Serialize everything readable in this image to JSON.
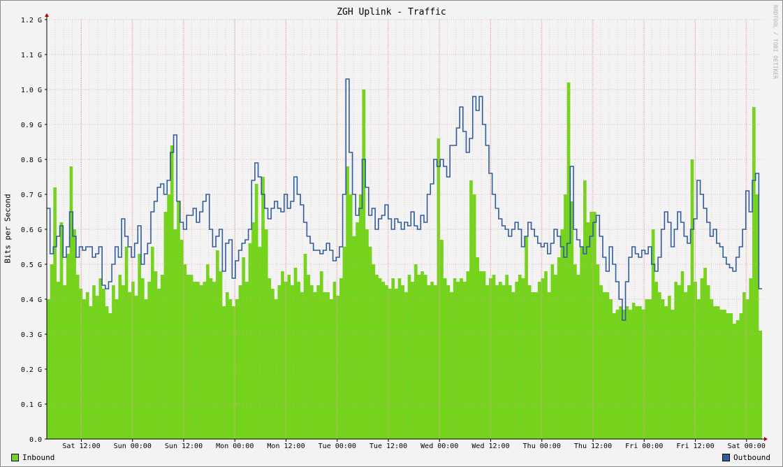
{
  "chart_data": {
    "type": "area",
    "title": "ZGH Uplink - Traffic",
    "ylabel": "Bits per Second",
    "watermark": "RRDTOOL / TOBI OETIKER",
    "ylim": [
      0,
      1.2
    ],
    "y_unit": "G",
    "y_ticks": [
      "0.0",
      "0.1 G",
      "0.2 G",
      "0.3 G",
      "0.4 G",
      "0.5 G",
      "0.6 G",
      "0.7 G",
      "0.8 G",
      "0.9 G",
      "1.0 G",
      "1.1 G",
      "1.2 G"
    ],
    "x_ticks": [
      "Sat 12:00",
      "Sun 00:00",
      "Sun 12:00",
      "Mon 00:00",
      "Mon 12:00",
      "Tue 00:00",
      "Tue 12:00",
      "Wed 00:00",
      "Wed 12:00",
      "Thu 00:00",
      "Thu 12:00",
      "Fri 00:00",
      "Fri 12:00",
      "Sat 00:00"
    ],
    "grid": true,
    "colors": {
      "inbound": "#74d41c",
      "outbound": "#2f5c9c",
      "grid": "#e8a0a0",
      "axis": "#000000",
      "arrow": "#b00000"
    },
    "series": [
      {
        "name": "Inbound",
        "style": "area",
        "values": [
          0.4,
          0.5,
          0.72,
          0.45,
          0.62,
          0.44,
          0.53,
          0.78,
          0.6,
          0.47,
          0.43,
          0.4,
          0.42,
          0.38,
          0.44,
          0.41,
          0.46,
          0.43,
          0.38,
          0.36,
          0.44,
          0.4,
          0.47,
          0.44,
          0.55,
          0.42,
          0.45,
          0.41,
          0.53,
          0.46,
          0.4,
          0.45,
          0.55,
          0.48,
          0.43,
          0.47,
          0.65,
          0.7,
          0.84,
          0.6,
          0.68,
          0.57,
          0.5,
          0.47,
          0.47,
          0.45,
          0.45,
          0.44,
          0.45,
          0.5,
          0.46,
          0.45,
          0.54,
          0.48,
          0.38,
          0.42,
          0.4,
          0.38,
          0.4,
          0.44,
          0.52,
          0.45,
          0.56,
          0.62,
          0.73,
          0.55,
          0.75,
          0.6,
          0.46,
          0.43,
          0.4,
          0.44,
          0.48,
          0.45,
          0.47,
          0.44,
          0.49,
          0.45,
          0.42,
          0.53,
          0.47,
          0.44,
          0.42,
          0.44,
          0.48,
          0.42,
          0.42,
          0.4,
          0.45,
          0.41,
          0.46,
          0.55,
          0.78,
          0.7,
          0.58,
          0.62,
          0.7,
          1.0,
          0.6,
          0.55,
          0.5,
          0.47,
          0.46,
          0.45,
          0.44,
          0.43,
          0.46,
          0.43,
          0.46,
          0.44,
          0.42,
          0.47,
          0.45,
          0.5,
          0.47,
          0.48,
          0.47,
          0.44,
          0.45,
          0.44,
          0.86,
          0.57,
          0.46,
          0.44,
          0.42,
          0.46,
          0.45,
          0.46,
          0.45,
          0.48,
          0.74,
          0.7,
          0.52,
          0.48,
          0.48,
          0.44,
          0.46,
          0.47,
          0.44,
          0.45,
          0.44,
          0.47,
          0.44,
          0.42,
          0.45,
          0.47,
          0.46,
          0.58,
          0.44,
          0.42,
          0.42,
          0.45,
          0.46,
          0.48,
          0.42,
          0.5,
          0.47,
          0.52,
          0.6,
          0.7,
          1.02,
          0.68,
          0.5,
          0.47,
          0.55,
          0.74,
          0.62,
          0.65,
          0.65,
          0.5,
          0.44,
          0.42,
          0.42,
          0.4,
          0.36,
          0.37,
          0.38,
          0.37,
          0.38,
          0.37,
          0.39,
          0.38,
          0.38,
          0.37,
          0.4,
          0.4,
          0.6,
          0.45,
          0.42,
          0.4,
          0.38,
          0.41,
          0.37,
          0.45,
          0.44,
          0.48,
          0.42,
          0.44,
          0.8,
          0.45,
          0.4,
          0.46,
          0.49,
          0.44,
          0.4,
          0.38,
          0.38,
          0.37,
          0.37,
          0.36,
          0.36,
          0.33,
          0.34,
          0.36,
          0.42,
          0.4,
          0.46,
          0.95,
          0.7,
          0.31
        ]
      },
      {
        "name": "Outbound",
        "style": "line",
        "values": [
          0.66,
          0.53,
          0.55,
          0.58,
          0.61,
          0.52,
          0.55,
          0.65,
          0.58,
          0.52,
          0.55,
          0.54,
          0.55,
          0.55,
          0.52,
          0.53,
          0.55,
          0.44,
          0.43,
          0.45,
          0.5,
          0.55,
          0.52,
          0.63,
          0.58,
          0.55,
          0.52,
          0.56,
          0.61,
          0.5,
          0.53,
          0.56,
          0.65,
          0.68,
          0.72,
          0.73,
          0.7,
          0.74,
          0.82,
          0.87,
          0.68,
          0.62,
          0.6,
          0.64,
          0.64,
          0.66,
          0.62,
          0.65,
          0.68,
          0.7,
          0.6,
          0.55,
          0.58,
          0.6,
          0.48,
          0.56,
          0.57,
          0.46,
          0.51,
          0.54,
          0.56,
          0.57,
          0.6,
          0.74,
          0.79,
          0.75,
          0.7,
          0.66,
          0.63,
          0.66,
          0.68,
          0.66,
          0.65,
          0.7,
          0.66,
          0.68,
          0.75,
          0.7,
          0.67,
          0.62,
          0.58,
          0.56,
          0.54,
          0.54,
          0.53,
          0.54,
          0.56,
          0.54,
          0.51,
          0.52,
          0.55,
          0.7,
          1.03,
          0.82,
          0.7,
          0.64,
          0.66,
          0.8,
          0.72,
          0.64,
          0.66,
          0.6,
          0.63,
          0.64,
          0.67,
          0.63,
          0.6,
          0.63,
          0.62,
          0.6,
          0.62,
          0.61,
          0.65,
          0.61,
          0.6,
          0.64,
          0.62,
          0.7,
          0.73,
          0.8,
          0.78,
          0.8,
          0.78,
          0.75,
          0.84,
          0.84,
          0.89,
          0.95,
          0.88,
          0.82,
          0.86,
          0.98,
          0.94,
          0.98,
          0.9,
          0.84,
          0.76,
          0.7,
          0.66,
          0.63,
          0.61,
          0.6,
          0.58,
          0.6,
          0.62,
          0.6,
          0.55,
          0.58,
          0.62,
          0.6,
          0.58,
          0.56,
          0.55,
          0.56,
          0.53,
          0.56,
          0.6,
          0.58,
          0.55,
          0.52,
          0.56,
          0.78,
          0.6,
          0.57,
          0.55,
          0.53,
          0.55,
          0.58,
          0.62,
          0.64,
          0.58,
          0.52,
          0.48,
          0.55,
          0.5,
          0.45,
          0.4,
          0.34,
          0.45,
          0.52,
          0.55,
          0.53,
          0.52,
          0.54,
          0.53,
          0.55,
          0.5,
          0.48,
          0.52,
          0.6,
          0.65,
          0.62,
          0.55,
          0.6,
          0.65,
          0.62,
          0.58,
          0.56,
          0.6,
          0.63,
          0.74,
          0.7,
          0.66,
          0.62,
          0.58,
          0.6,
          0.56,
          0.55,
          0.52,
          0.5,
          0.49,
          0.48,
          0.52,
          0.55,
          0.6,
          0.71,
          0.65,
          0.74,
          0.76,
          0.43
        ]
      }
    ]
  },
  "legend": {
    "inbound_label": "Inbound",
    "outbound_label": "Outbound"
  }
}
